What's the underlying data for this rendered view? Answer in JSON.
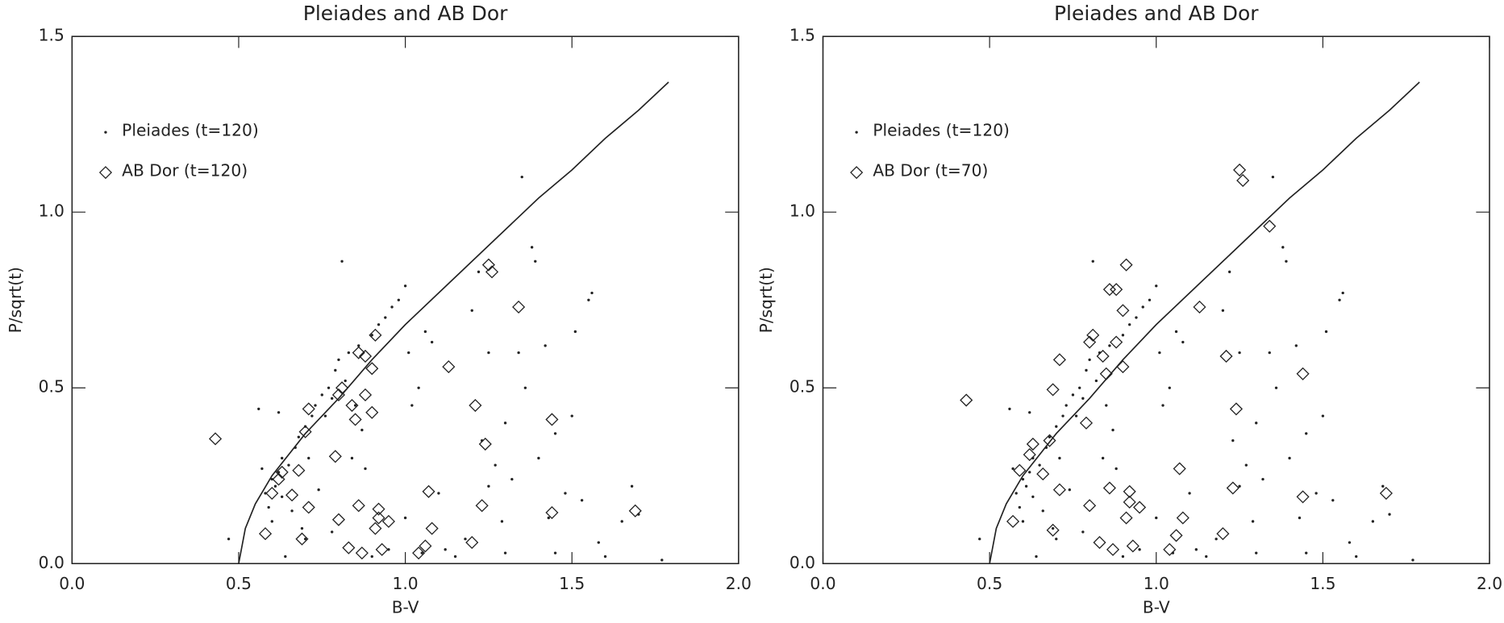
{
  "chart_data": [
    {
      "type": "scatter",
      "title": "Pleiades and AB Dor",
      "xlabel": "B-V",
      "ylabel": "P/sqrt(t)",
      "xlim": [
        0,
        2
      ],
      "ylim": [
        0,
        1.5
      ],
      "xticks": [
        {
          "value": 0,
          "label": "0.0"
        },
        {
          "value": 0.5,
          "label": "0.5"
        },
        {
          "value": 1,
          "label": "1.0"
        },
        {
          "value": 1.5,
          "label": "1.5"
        },
        {
          "value": 2,
          "label": "2.0"
        }
      ],
      "yticks": [
        {
          "value": 0,
          "label": "0.0"
        },
        {
          "value": 0.5,
          "label": "0.5"
        },
        {
          "value": 1,
          "label": "1.0"
        },
        {
          "value": 1.5,
          "label": "1.5"
        }
      ],
      "grid": false,
      "legend": "upper left",
      "series": [
        {
          "name": "Pleiades (t=120)",
          "color": "#222222",
          "marker": "dot",
          "x": [
            0.47,
            0.56,
            0.57,
            0.58,
            0.59,
            0.6,
            0.6,
            0.61,
            0.62,
            0.62,
            0.63,
            0.63,
            0.64,
            0.65,
            0.66,
            0.67,
            0.68,
            0.69,
            0.7,
            0.71,
            0.72,
            0.73,
            0.74,
            0.75,
            0.76,
            0.77,
            0.78,
            0.79,
            0.8,
            0.81,
            0.82,
            0.83,
            0.84,
            0.85,
            0.86,
            0.87,
            0.88,
            0.9,
            0.92,
            0.94,
            0.96,
            0.98,
            1.0,
            1.01,
            1.02,
            1.04,
            1.06,
            1.08,
            1.1,
            1.12,
            1.15,
            1.18,
            1.2,
            1.22,
            1.23,
            1.25,
            1.27,
            1.29,
            1.3,
            1.32,
            1.34,
            1.35,
            1.36,
            1.38,
            1.39,
            1.4,
            1.42,
            1.43,
            1.45,
            1.48,
            1.5,
            1.51,
            1.53,
            1.55,
            1.56,
            1.58,
            1.6,
            1.65,
            1.68,
            1.7,
            1.77,
            0.9,
            0.95,
            1.05,
            1.3,
            0.7,
            0.78,
            1.0,
            1.25,
            1.45
          ],
          "values": [
            0.07,
            0.44,
            0.27,
            0.2,
            0.16,
            0.24,
            0.12,
            0.22,
            0.26,
            0.43,
            0.3,
            0.19,
            0.02,
            0.28,
            0.15,
            0.33,
            0.36,
            0.1,
            0.39,
            0.3,
            0.42,
            0.45,
            0.21,
            0.48,
            0.42,
            0.5,
            0.47,
            0.55,
            0.58,
            0.86,
            0.52,
            0.6,
            0.3,
            0.45,
            0.62,
            0.38,
            0.27,
            0.65,
            0.68,
            0.7,
            0.73,
            0.75,
            0.79,
            0.6,
            0.45,
            0.5,
            0.66,
            0.63,
            0.2,
            0.04,
            0.02,
            0.07,
            0.72,
            0.83,
            0.35,
            0.6,
            0.28,
            0.12,
            0.4,
            0.24,
            0.6,
            1.1,
            0.5,
            0.9,
            0.86,
            0.3,
            0.62,
            0.13,
            0.03,
            0.2,
            0.42,
            0.66,
            0.18,
            0.75,
            0.77,
            0.06,
            0.02,
            0.12,
            0.22,
            0.14,
            0.01,
            0.02,
            0.04,
            0.03,
            0.03,
            0.07,
            0.09,
            0.13,
            0.22,
            0.37
          ]
        },
        {
          "name": "AB Dor (t=120)",
          "color": "#222222",
          "marker": "diamond",
          "x": [
            0.43,
            0.58,
            0.6,
            0.62,
            0.63,
            0.66,
            0.68,
            0.69,
            0.7,
            0.71,
            0.71,
            0.79,
            0.8,
            0.8,
            0.81,
            0.83,
            0.84,
            0.85,
            0.86,
            0.86,
            0.87,
            0.88,
            0.88,
            0.9,
            0.9,
            0.91,
            0.91,
            0.92,
            0.92,
            0.93,
            0.95,
            1.04,
            1.06,
            1.07,
            1.08,
            1.13,
            1.2,
            1.21,
            1.23,
            1.24,
            1.25,
            1.26,
            1.34,
            1.44,
            1.44,
            1.69
          ],
          "values": [
            0.355,
            0.085,
            0.2,
            0.24,
            0.26,
            0.195,
            0.265,
            0.07,
            0.375,
            0.16,
            0.44,
            0.305,
            0.125,
            0.48,
            0.5,
            0.045,
            0.45,
            0.41,
            0.6,
            0.165,
            0.03,
            0.48,
            0.59,
            0.43,
            0.555,
            0.1,
            0.65,
            0.13,
            0.155,
            0.04,
            0.12,
            0.03,
            0.05,
            0.205,
            0.1,
            0.56,
            0.06,
            0.45,
            0.165,
            0.34,
            0.85,
            0.83,
            0.73,
            0.41,
            0.145,
            0.15
          ]
        },
        {
          "color": "#222222",
          "marker": "line",
          "x": [
            0.5,
            0.52,
            0.55,
            0.6,
            0.7,
            0.8,
            0.9,
            1.0,
            1.1,
            1.2,
            1.3,
            1.4,
            1.5,
            1.6,
            1.7,
            1.79
          ],
          "values": [
            0,
            0.1,
            0.17,
            0.25,
            0.37,
            0.47,
            0.58,
            0.68,
            0.77,
            0.86,
            0.95,
            1.04,
            1.12,
            1.21,
            1.29,
            1.37
          ]
        }
      ]
    },
    {
      "type": "scatter",
      "title": "Pleiades and AB Dor",
      "xlabel": "B-V",
      "ylabel": "P/sqrt(t)",
      "xlim": [
        0,
        2
      ],
      "ylim": [
        0,
        1.5
      ],
      "xticks": [
        {
          "value": 0,
          "label": "0.0"
        },
        {
          "value": 0.5,
          "label": "0.5"
        },
        {
          "value": 1,
          "label": "1.0"
        },
        {
          "value": 1.5,
          "label": "1.5"
        },
        {
          "value": 2,
          "label": "2.0"
        }
      ],
      "yticks": [
        {
          "value": 0,
          "label": "0.0"
        },
        {
          "value": 0.5,
          "label": "0.5"
        },
        {
          "value": 1,
          "label": "1.0"
        },
        {
          "value": 1.5,
          "label": "1.5"
        }
      ],
      "grid": false,
      "legend": "upper left",
      "series": [
        {
          "name": "Pleiades (t=120)",
          "color": "#222222",
          "marker": "dot",
          "x": [
            0.47,
            0.56,
            0.57,
            0.58,
            0.59,
            0.6,
            0.6,
            0.61,
            0.62,
            0.62,
            0.63,
            0.63,
            0.64,
            0.65,
            0.66,
            0.67,
            0.68,
            0.69,
            0.7,
            0.71,
            0.72,
            0.73,
            0.74,
            0.75,
            0.76,
            0.77,
            0.78,
            0.79,
            0.8,
            0.81,
            0.82,
            0.83,
            0.84,
            0.85,
            0.86,
            0.87,
            0.88,
            0.9,
            0.92,
            0.94,
            0.96,
            0.98,
            1.0,
            1.01,
            1.02,
            1.04,
            1.06,
            1.08,
            1.1,
            1.12,
            1.15,
            1.18,
            1.2,
            1.22,
            1.23,
            1.25,
            1.27,
            1.29,
            1.3,
            1.32,
            1.34,
            1.35,
            1.36,
            1.38,
            1.39,
            1.4,
            1.42,
            1.43,
            1.45,
            1.48,
            1.5,
            1.51,
            1.53,
            1.55,
            1.56,
            1.58,
            1.6,
            1.65,
            1.68,
            1.7,
            1.77,
            0.9,
            0.95,
            1.05,
            1.3,
            0.7,
            0.78,
            1.0,
            1.25,
            1.45
          ],
          "values": [
            0.07,
            0.44,
            0.27,
            0.2,
            0.16,
            0.24,
            0.12,
            0.22,
            0.26,
            0.43,
            0.3,
            0.19,
            0.02,
            0.28,
            0.15,
            0.33,
            0.36,
            0.1,
            0.39,
            0.3,
            0.42,
            0.45,
            0.21,
            0.48,
            0.42,
            0.5,
            0.47,
            0.55,
            0.58,
            0.86,
            0.52,
            0.6,
            0.3,
            0.45,
            0.62,
            0.38,
            0.27,
            0.65,
            0.68,
            0.7,
            0.73,
            0.75,
            0.79,
            0.6,
            0.45,
            0.5,
            0.66,
            0.63,
            0.2,
            0.04,
            0.02,
            0.07,
            0.72,
            0.83,
            0.35,
            0.6,
            0.28,
            0.12,
            0.4,
            0.24,
            0.6,
            1.1,
            0.5,
            0.9,
            0.86,
            0.3,
            0.62,
            0.13,
            0.03,
            0.2,
            0.42,
            0.66,
            0.18,
            0.75,
            0.77,
            0.06,
            0.02,
            0.12,
            0.22,
            0.14,
            0.01,
            0.02,
            0.04,
            0.03,
            0.03,
            0.07,
            0.09,
            0.13,
            0.22,
            0.37
          ]
        },
        {
          "name": "AB Dor (t=70)",
          "color": "#222222",
          "marker": "diamond",
          "x": [
            0.43,
            0.57,
            0.59,
            0.62,
            0.63,
            0.66,
            0.68,
            0.69,
            0.69,
            0.71,
            0.71,
            0.79,
            0.8,
            0.8,
            0.81,
            0.83,
            0.84,
            0.85,
            0.86,
            0.86,
            0.87,
            0.88,
            0.88,
            0.9,
            0.9,
            0.91,
            0.91,
            0.92,
            0.92,
            0.93,
            0.95,
            1.04,
            1.06,
            1.07,
            1.08,
            1.13,
            1.2,
            1.21,
            1.23,
            1.24,
            1.25,
            1.26,
            1.34,
            1.44,
            1.44,
            1.69
          ],
          "values": [
            0.465,
            0.12,
            0.265,
            0.31,
            0.34,
            0.255,
            0.35,
            0.095,
            0.495,
            0.21,
            0.58,
            0.4,
            0.165,
            0.63,
            0.65,
            0.06,
            0.59,
            0.54,
            0.78,
            0.215,
            0.04,
            0.63,
            0.78,
            0.56,
            0.72,
            0.13,
            0.85,
            0.175,
            0.205,
            0.05,
            0.16,
            0.04,
            0.08,
            0.27,
            0.13,
            0.73,
            0.085,
            0.59,
            0.215,
            0.44,
            1.12,
            1.09,
            0.96,
            0.54,
            0.19,
            0.2
          ]
        },
        {
          "color": "#222222",
          "marker": "line",
          "x": [
            0.5,
            0.52,
            0.55,
            0.6,
            0.7,
            0.8,
            0.9,
            1.0,
            1.1,
            1.2,
            1.3,
            1.4,
            1.5,
            1.6,
            1.7,
            1.79
          ],
          "values": [
            0,
            0.1,
            0.17,
            0.25,
            0.37,
            0.47,
            0.58,
            0.68,
            0.77,
            0.86,
            0.95,
            1.04,
            1.12,
            1.21,
            1.29,
            1.37
          ]
        }
      ]
    }
  ]
}
